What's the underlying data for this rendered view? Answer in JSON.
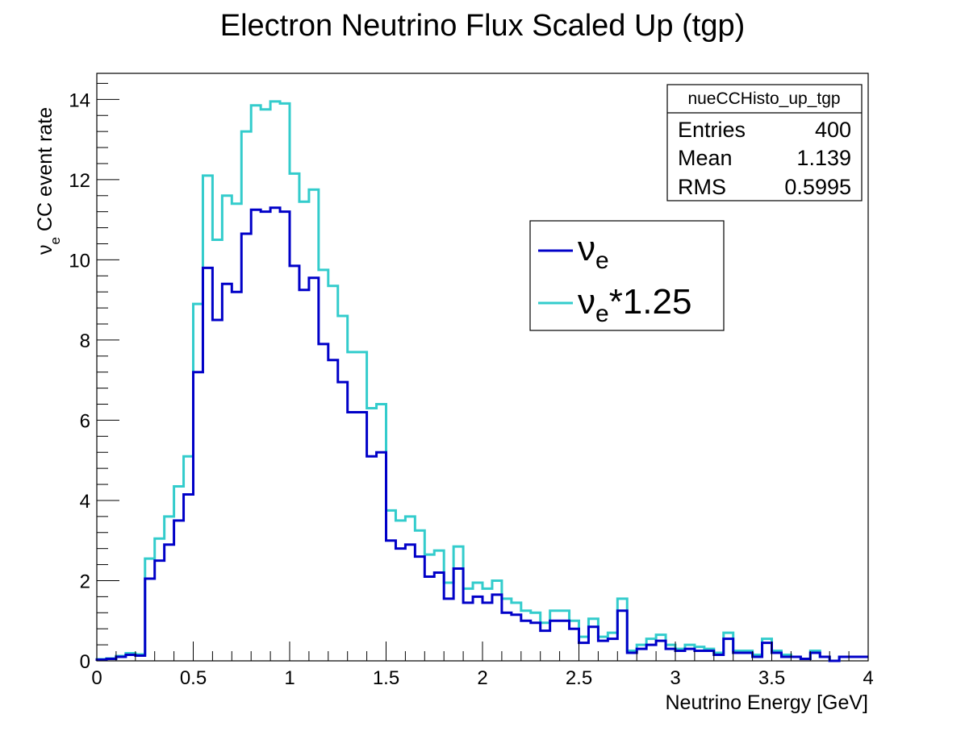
{
  "colors": {
    "series_nue": "#0000c8",
    "series_scaled": "#33cccc",
    "frame": "#000000",
    "background": "#ffffff"
  },
  "chart_data": {
    "type": "histogram",
    "title": "Electron Neutrino Flux Scaled Up (tgp)",
    "xlabel": "Neutrino Energy [GeV]",
    "ylabel_main": "ν",
    "ylabel_sub": "e",
    "ylabel_rest": " CC event rate",
    "xlim": [
      0,
      4
    ],
    "ylim": [
      0,
      14.65
    ],
    "bin_width": 0.05,
    "x_ticks": [
      "0",
      "0.5",
      "1",
      "1.5",
      "2",
      "2.5",
      "3",
      "3.5",
      "4"
    ],
    "x_tick_values": [
      0,
      0.5,
      1,
      1.5,
      2,
      2.5,
      3,
      3.5,
      4
    ],
    "y_ticks": [
      "0",
      "2",
      "4",
      "6",
      "8",
      "10",
      "12",
      "14"
    ],
    "y_tick_values": [
      0,
      2,
      4,
      6,
      8,
      10,
      12,
      14
    ],
    "grid": false,
    "series": [
      {
        "name_main": "ν",
        "name_sub": "e",
        "name_suffix": "",
        "color": "#0000c8",
        "values": [
          0.03,
          0.05,
          0.1,
          0.15,
          0.13,
          2.05,
          2.5,
          2.9,
          3.5,
          4.15,
          7.2,
          9.8,
          8.5,
          9.4,
          9.2,
          10.65,
          11.25,
          11.2,
          11.3,
          11.2,
          9.85,
          9.25,
          9.55,
          7.9,
          7.5,
          6.95,
          6.2,
          6.2,
          5.1,
          5.2,
          3.0,
          2.8,
          2.9,
          2.6,
          2.1,
          2.2,
          1.55,
          2.3,
          1.45,
          1.6,
          1.45,
          1.65,
          1.2,
          1.15,
          1.0,
          0.95,
          0.75,
          1.0,
          1.0,
          0.8,
          0.45,
          0.85,
          0.5,
          0.55,
          1.25,
          0.2,
          0.3,
          0.4,
          0.5,
          0.3,
          0.25,
          0.3,
          0.25,
          0.25,
          0.15,
          0.55,
          0.2,
          0.2,
          0.1,
          0.45,
          0.2,
          0.1,
          0.1,
          0.05,
          0.2,
          0.1,
          0.0,
          0.1,
          0.1,
          0.1
        ]
      },
      {
        "name_main": "ν",
        "name_sub": "e",
        "name_suffix": "*1.25",
        "color": "#33cccc",
        "values": [
          0.04,
          0.06,
          0.12,
          0.19,
          0.16,
          2.55,
          3.05,
          3.6,
          4.35,
          5.1,
          8.9,
          12.1,
          10.5,
          11.6,
          11.4,
          13.2,
          13.85,
          13.75,
          13.95,
          13.9,
          12.15,
          11.45,
          11.75,
          9.75,
          9.35,
          8.6,
          7.7,
          7.7,
          6.3,
          6.4,
          3.75,
          3.5,
          3.6,
          3.25,
          2.65,
          2.75,
          1.95,
          2.85,
          1.8,
          1.95,
          1.8,
          2.0,
          1.55,
          1.45,
          1.25,
          1.2,
          0.95,
          1.25,
          1.25,
          1.0,
          0.6,
          1.05,
          0.6,
          0.7,
          1.55,
          0.25,
          0.4,
          0.55,
          0.65,
          0.4,
          0.3,
          0.4,
          0.35,
          0.3,
          0.2,
          0.7,
          0.25,
          0.25,
          0.15,
          0.55,
          0.25,
          0.15,
          0.1,
          0.05,
          0.25,
          0.1,
          0.0,
          0.1,
          0.1,
          0.1
        ]
      }
    ],
    "stats_box": {
      "name": "nueCCHisto_up_tgp",
      "rows": [
        {
          "label": "Entries",
          "value": "400"
        },
        {
          "label": "Mean",
          "value": "1.139"
        },
        {
          "label": "RMS",
          "value": "0.5995"
        }
      ]
    },
    "legend": {
      "placement": "upper-right"
    }
  }
}
